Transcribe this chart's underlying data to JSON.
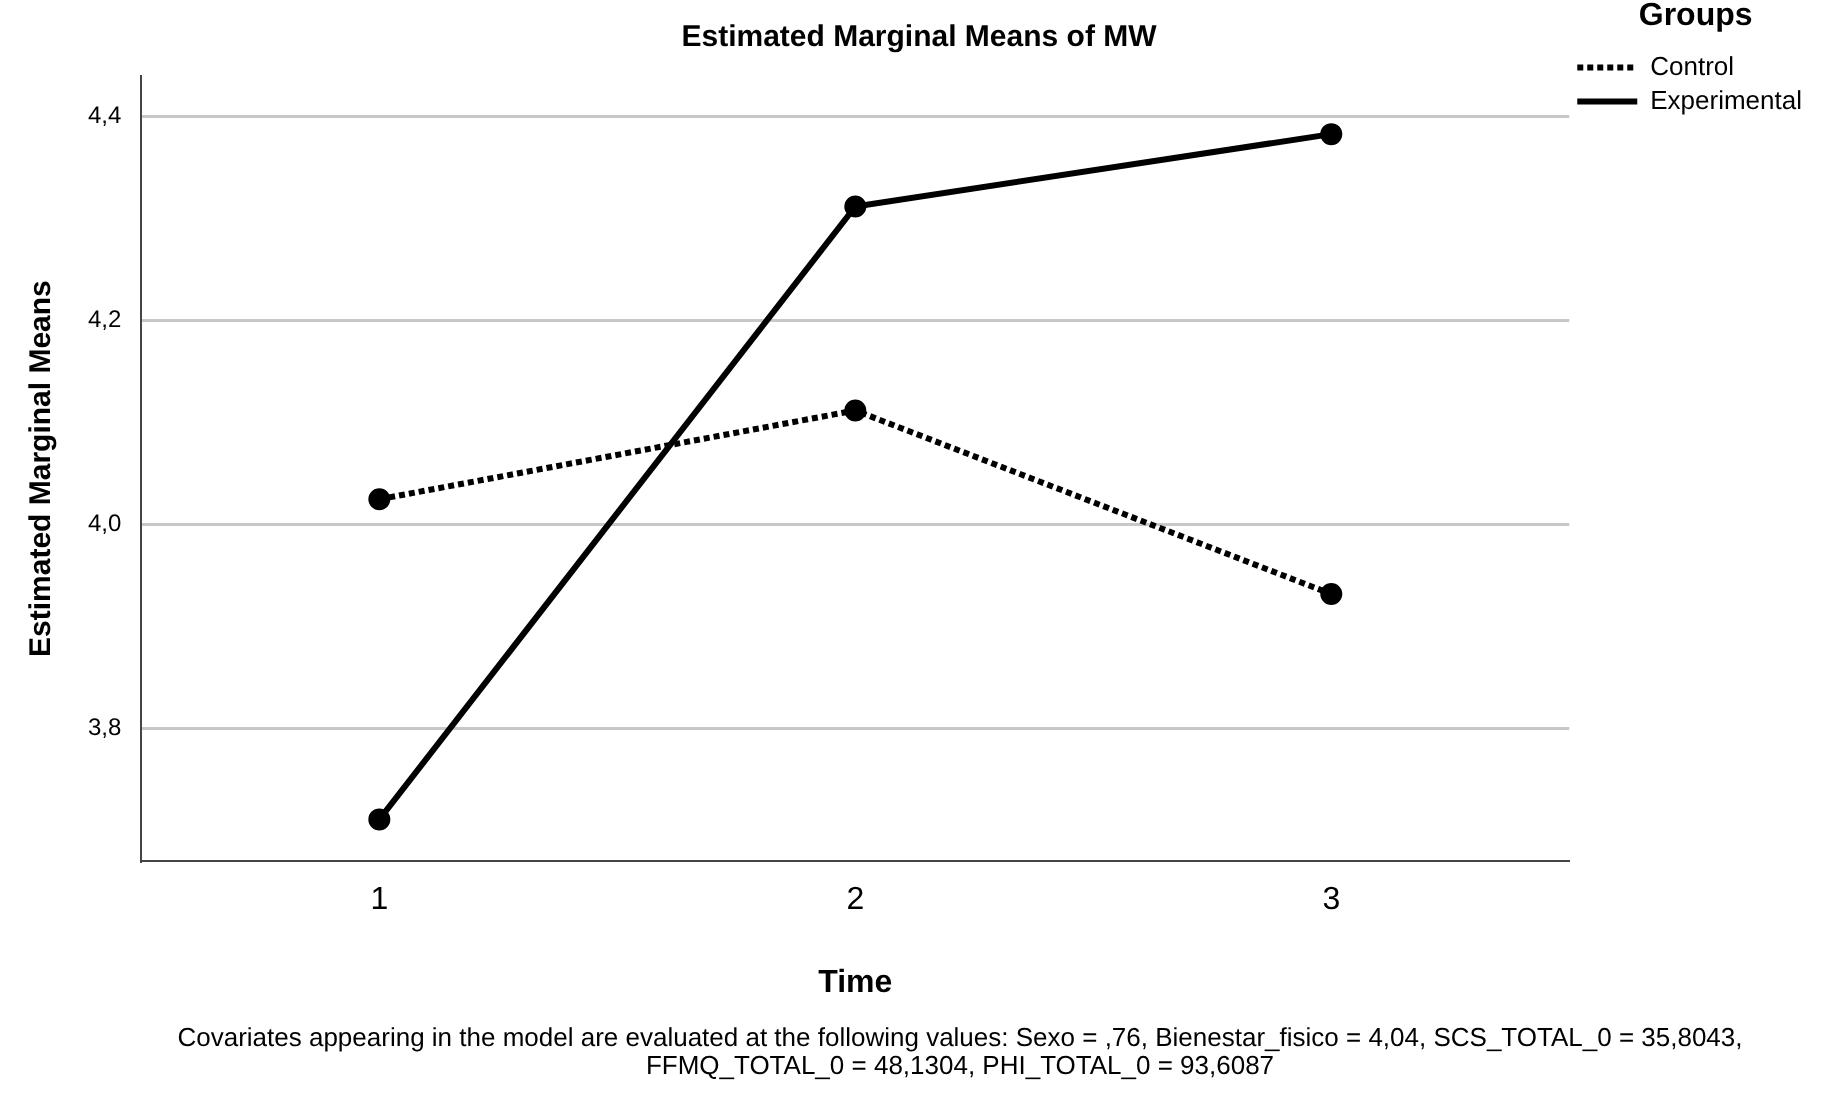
{
  "chart_data": {
    "type": "line",
    "title": "Estimated Marginal Means of MW",
    "xlabel": "Time",
    "ylabel": "Estimated Marginal Means",
    "legend_title": "Groups",
    "categories": [
      "1",
      "2",
      "3"
    ],
    "series": [
      {
        "name": "Control",
        "color": "#000000",
        "values": [
          4.025,
          4.112,
          3.932
        ],
        "line_style": "dotted"
      },
      {
        "name": "Experimental",
        "color": "#000000",
        "values": [
          3.711,
          4.312,
          4.383
        ],
        "line_style": "solid"
      }
    ],
    "ylim": [
      3.67,
      4.44
    ],
    "yticks": [
      {
        "value": 3.8,
        "label": "3,8"
      },
      {
        "value": 4.0,
        "label": "4,0"
      },
      {
        "value": 4.2,
        "label": "4,2"
      },
      {
        "value": 4.4,
        "label": "4,4"
      }
    ],
    "grid": "y",
    "legend": "top right",
    "marker": "circle",
    "annotations": [
      "Covariates appearing in the model are evaluated at the following values: Sexo = ,76, Bienestar_fisico = 4,04, SCS_TOTAL_0 = 35,8043, FFMQ_TOTAL_0 = 48,1304, PHI_TOTAL_0 = 93,6087"
    ]
  }
}
